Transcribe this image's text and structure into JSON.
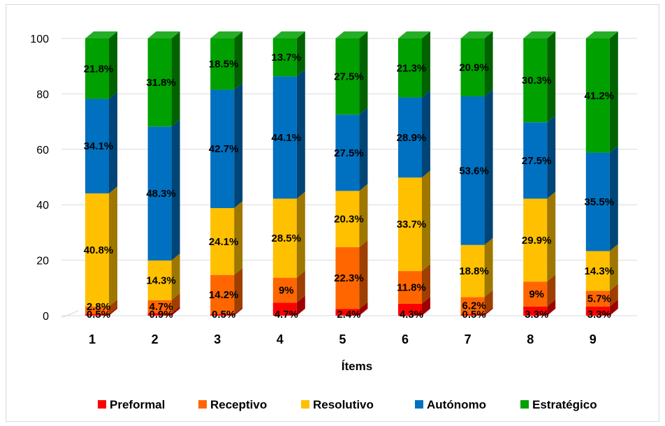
{
  "chart_data": {
    "type": "bar",
    "stacked": true,
    "three_d": true,
    "categories": [
      "1",
      "2",
      "3",
      "4",
      "5",
      "6",
      "7",
      "8",
      "9"
    ],
    "xlabel": "Ítems",
    "ylabel": "",
    "ylim": [
      0,
      100
    ],
    "yticks": [
      0,
      20,
      40,
      60,
      80,
      100
    ],
    "grid": true,
    "legend_position": "bottom",
    "series": [
      {
        "name": "Preformal",
        "color": "#ff0000",
        "values": [
          0.5,
          0.9,
          0.5,
          4.7,
          2.4,
          4.3,
          0.5,
          3.3,
          3.3
        ],
        "labels": [
          "0.5%",
          "0.9%",
          "0.5%",
          "4.7%",
          "2.4%",
          "4.3%",
          "0.5%",
          "3.3%",
          "3.3%"
        ]
      },
      {
        "name": "Receptivo",
        "color": "#ff6600",
        "values": [
          2.8,
          4.7,
          14.2,
          9,
          22.3,
          11.8,
          6.2,
          9,
          5.7
        ],
        "labels": [
          "2.8%",
          "4.7%",
          "14.2%",
          "9%",
          "22.3%",
          "11.8%",
          "6.2%",
          "9%",
          "5.7%"
        ]
      },
      {
        "name": "Resolutivo",
        "color": "#ffc000",
        "values": [
          40.8,
          14.3,
          24.1,
          28.5,
          20.3,
          33.7,
          18.8,
          29.9,
          14.3
        ],
        "labels": [
          "40.8%",
          "14.3%",
          "24.1%",
          "28.5%",
          "20.3%",
          "33.7%",
          "18.8%",
          "29.9%",
          "14.3%"
        ]
      },
      {
        "name": "Autónomo",
        "color": "#0070c0",
        "values": [
          34.1,
          48.3,
          42.7,
          44.1,
          27.5,
          28.9,
          53.6,
          27.5,
          35.5
        ],
        "labels": [
          "34.1%",
          "48.3%",
          "42.7%",
          "44.1%",
          "27.5%",
          "28.9%",
          "53.6%",
          "27.5%",
          "35.5%"
        ]
      },
      {
        "name": "Estratégico",
        "color": "#00a000",
        "values": [
          21.8,
          31.8,
          18.5,
          13.7,
          27.5,
          21.3,
          20.9,
          30.3,
          41.2
        ],
        "labels": [
          "21.8%",
          "31.8%",
          "18.5%",
          "13.7%",
          "27.5%",
          "21.3%",
          "20.9%",
          "30.3%",
          "41.2%"
        ]
      }
    ]
  }
}
